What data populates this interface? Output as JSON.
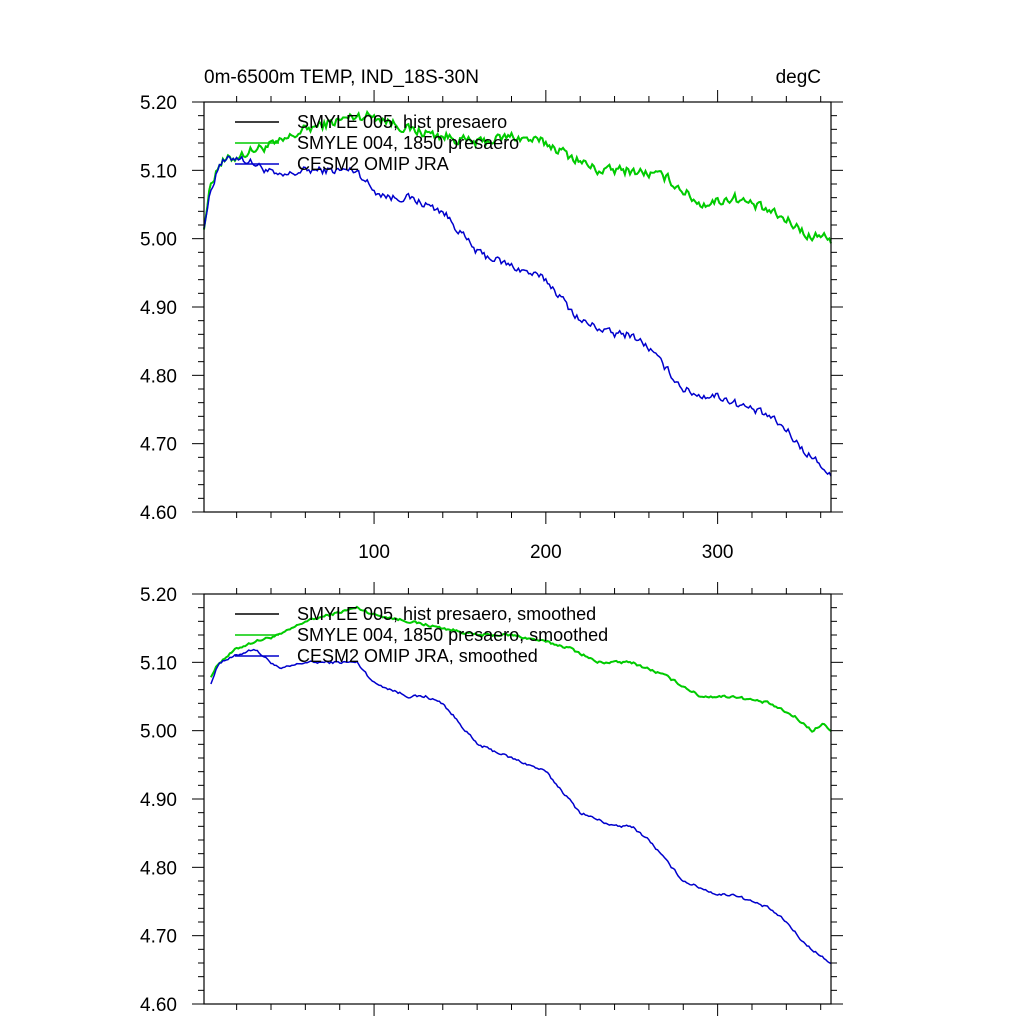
{
  "chart_data": [
    {
      "type": "line",
      "title": "0m-6500m TEMP, IND_18S-30N",
      "units": "degC",
      "xlim": [
        1,
        366
      ],
      "ylim": [
        4.6,
        5.2
      ],
      "xticks": [
        100,
        200,
        300
      ],
      "xtick_labels": [
        "100",
        "200",
        "300"
      ],
      "yticks": [
        4.6,
        4.7,
        4.8,
        4.9,
        5.0,
        5.1,
        5.2
      ],
      "ytick_labels": [
        "4.60",
        "4.70",
        "4.80",
        "4.90",
        "5.00",
        "5.10",
        "5.20"
      ],
      "legend_position": "top-left",
      "grid": false,
      "series": [
        {
          "name": "SMYLE 005, hist presaero",
          "color": "#000000",
          "noise": 0.0095,
          "x": [
            1,
            5,
            10,
            20,
            30,
            45,
            60,
            75,
            90,
            100,
            120,
            140,
            160,
            180,
            200,
            215,
            230,
            250,
            270,
            290,
            310,
            330,
            345,
            355,
            362,
            366
          ],
          "y": [
            5.02,
            5.08,
            5.11,
            5.12,
            5.13,
            5.14,
            5.16,
            5.17,
            5.18,
            5.18,
            5.16,
            5.15,
            5.14,
            5.15,
            5.14,
            5.12,
            5.1,
            5.1,
            5.09,
            5.05,
            5.06,
            5.04,
            5.02,
            5.0,
            5.01,
            4.99
          ]
        },
        {
          "name": "SMYLE 004, 1850 presaero",
          "color": "#00cc00",
          "noise": 0.0095,
          "x": [
            1,
            5,
            10,
            20,
            30,
            45,
            60,
            75,
            90,
            100,
            120,
            140,
            160,
            180,
            200,
            215,
            230,
            250,
            270,
            290,
            310,
            330,
            345,
            355,
            362,
            366
          ],
          "y": [
            5.02,
            5.08,
            5.11,
            5.12,
            5.13,
            5.14,
            5.16,
            5.17,
            5.18,
            5.18,
            5.16,
            5.15,
            5.14,
            5.15,
            5.14,
            5.12,
            5.1,
            5.1,
            5.09,
            5.05,
            5.06,
            5.04,
            5.02,
            5.0,
            5.01,
            4.99
          ]
        },
        {
          "name": "CESM2 OMIP JRA",
          "color": "#0000cc",
          "noise": 0.0075,
          "x": [
            1,
            5,
            10,
            20,
            30,
            45,
            60,
            75,
            90,
            100,
            110,
            120,
            130,
            140,
            150,
            160,
            170,
            180,
            190,
            200,
            210,
            220,
            230,
            240,
            250,
            260,
            270,
            280,
            290,
            300,
            310,
            320,
            330,
            340,
            350,
            360,
            366
          ],
          "y": [
            5.02,
            5.07,
            5.11,
            5.12,
            5.11,
            5.09,
            5.1,
            5.1,
            5.1,
            5.07,
            5.06,
            5.06,
            5.05,
            5.04,
            5.01,
            4.98,
            4.97,
            4.96,
            4.95,
            4.94,
            4.91,
            4.88,
            4.87,
            4.86,
            4.86,
            4.84,
            4.81,
            4.78,
            4.77,
            4.77,
            4.76,
            4.75,
            4.74,
            4.72,
            4.69,
            4.67,
            4.65
          ]
        }
      ]
    },
    {
      "type": "line",
      "xlim": [
        1,
        366
      ],
      "ylim": [
        4.6,
        5.2
      ],
      "xticks": [
        100,
        200,
        300
      ],
      "yticks": [
        4.6,
        4.7,
        4.8,
        4.9,
        5.0,
        5.1,
        5.2
      ],
      "ytick_labels": [
        "4.60",
        "4.70",
        "4.80",
        "4.90",
        "5.00",
        "5.10",
        "5.20"
      ],
      "legend_position": "top-left",
      "grid": false,
      "series": [
        {
          "name": "SMYLE 005, hist presaero, smoothed",
          "color": "#000000",
          "noise": 0.0025,
          "x": [
            5,
            10,
            20,
            30,
            45,
            60,
            75,
            90,
            100,
            120,
            140,
            160,
            180,
            200,
            215,
            230,
            250,
            270,
            290,
            310,
            330,
            345,
            355,
            362,
            366
          ],
          "y": [
            5.08,
            5.1,
            5.12,
            5.13,
            5.14,
            5.16,
            5.17,
            5.18,
            5.17,
            5.16,
            5.15,
            5.14,
            5.14,
            5.13,
            5.12,
            5.1,
            5.1,
            5.08,
            5.05,
            5.05,
            5.04,
            5.02,
            5.0,
            5.01,
            5.0
          ]
        },
        {
          "name": "SMYLE 004, 1850 presaero, smoothed",
          "color": "#00cc00",
          "noise": 0.0025,
          "x": [
            5,
            10,
            20,
            30,
            45,
            60,
            75,
            90,
            100,
            120,
            140,
            160,
            180,
            200,
            215,
            230,
            250,
            270,
            290,
            310,
            330,
            345,
            355,
            362,
            366
          ],
          "y": [
            5.08,
            5.1,
            5.12,
            5.13,
            5.14,
            5.16,
            5.17,
            5.18,
            5.17,
            5.16,
            5.15,
            5.14,
            5.14,
            5.13,
            5.12,
            5.1,
            5.1,
            5.08,
            5.05,
            5.05,
            5.04,
            5.02,
            5.0,
            5.01,
            5.0
          ]
        },
        {
          "name": "CESM2 OMIP JRA, smoothed",
          "color": "#0000cc",
          "noise": 0.0025,
          "x": [
            5,
            10,
            20,
            30,
            45,
            60,
            75,
            90,
            100,
            110,
            120,
            130,
            140,
            150,
            160,
            170,
            180,
            190,
            200,
            210,
            220,
            230,
            240,
            250,
            260,
            270,
            280,
            290,
            300,
            310,
            320,
            330,
            340,
            350,
            360,
            366
          ],
          "y": [
            5.07,
            5.1,
            5.11,
            5.12,
            5.09,
            5.1,
            5.1,
            5.1,
            5.07,
            5.06,
            5.05,
            5.05,
            5.04,
            5.01,
            4.98,
            4.97,
            4.96,
            4.95,
            4.94,
            4.91,
            4.88,
            4.87,
            4.86,
            4.86,
            4.84,
            4.81,
            4.78,
            4.77,
            4.76,
            4.76,
            4.75,
            4.74,
            4.72,
            4.69,
            4.67,
            4.66
          ]
        }
      ]
    }
  ]
}
